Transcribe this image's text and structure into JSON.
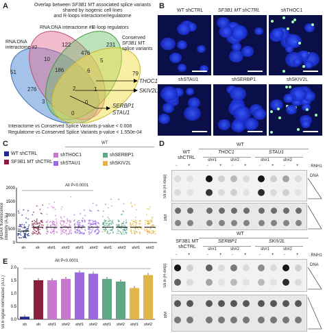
{
  "panels": {
    "A": "A",
    "B": "B",
    "C": "C",
    "D": "D",
    "E": "E"
  },
  "venn": {
    "title_parts": [
      "Overlap between ",
      "SF3B1",
      " MT associated splice variants"
    ],
    "title_line2": "shared by isogenic cell lines",
    "title_line3": "and R-loops interactome/regulatome",
    "sets": [
      "RNA:DNA interactome #1",
      "RNA:DNA interactome #2",
      "R-loop regulators",
      "Conserved",
      "SF3B1",
      "MT",
      "splice variants"
    ],
    "counts": [
      "122",
      "231",
      "10",
      "476",
      "51",
      "186",
      "6",
      "5",
      "79",
      "276",
      "2",
      "1",
      "3",
      "0",
      "0"
    ],
    "genes": [
      "THOC1",
      "SKIV2L",
      "SERBP1",
      "STAU1"
    ],
    "stat1": "Interactome vs Conserved Splice Variants p-value < 0.008",
    "stat2": "Regulatome vs Conserved Splice Variants p-value < 1.550e-04"
  },
  "micro": {
    "top": [
      "WT shCTRL",
      "SF3B1 MT shCTRL",
      "shTHOC1"
    ],
    "bottom": [
      "shSTAU1",
      "shSERBP1",
      "shSKIV2L"
    ]
  },
  "scatter": {
    "legend": [
      "WT shCTRL",
      "SF3B1 MT shCTRL",
      "shTHOC1",
      "shSTAU1",
      "shSERBP1",
      "shSKIV2L"
    ],
    "legend_colors": [
      "#1f2a8a",
      "#8b1e3f",
      "#c779d0",
      "#9c6ade",
      "#5fa885",
      "#e0b64a"
    ],
    "wt": "WT",
    "pvalue": "All P<0.0001",
    "ylabel": "γH2AX fluorescence intensity (A.U.)",
    "yticks": [
      "2000",
      "1500",
      "1000",
      "500",
      "0"
    ],
    "xticks": [
      "sh",
      "sh",
      "sh#1",
      "sh#2",
      "sh#1",
      "sh#2",
      "sh#1",
      "sh#2",
      "sh#1",
      "sh#2"
    ]
  },
  "bar": {
    "pvalue": "All P<0.0001",
    "ylabel": "S9.6 signal normalized (A.U.)",
    "yticks": [
      "2.0",
      "1.5",
      "1.0",
      "0.5",
      "0.0"
    ],
    "xticks": [
      "sh",
      "sh",
      "sh#1",
      "sh#2",
      "sh#1",
      "sh#2",
      "sh#1",
      "sh#2",
      "sh#1",
      "sh#2"
    ]
  },
  "chart_data": {
    "type": "bar",
    "categories": [
      "sh",
      "sh",
      "sh#1",
      "sh#2",
      "sh#1",
      "sh#2",
      "sh#1",
      "sh#2",
      "sh#1",
      "sh#2"
    ],
    "values": [
      0.1,
      1.5,
      1.5,
      1.55,
      1.8,
      1.75,
      1.55,
      1.45,
      1.2,
      1.7
    ],
    "colors": [
      "#1f2a8a",
      "#8b1e3f",
      "#c779d0",
      "#c779d0",
      "#9c6ade",
      "#9c6ade",
      "#5fa885",
      "#5fa885",
      "#e0b64a",
      "#e0b64a"
    ],
    "ylim": [
      0,
      2.0
    ],
    "ylabel": "S9.6 signal normalized (A.U.)"
  },
  "blot": {
    "top": {
      "wt": "WT",
      "group_left": "WT shCTRL",
      "group1": "THOC1",
      "group2": "STAU1",
      "sh1": "sh#1",
      "sh2": "sh#2",
      "minus": "-",
      "plus": "+",
      "rnh": ": RNH1",
      "dna": "DNA",
      "s96": "S9.6 (R-loop)",
      "bm": "BM"
    },
    "bottom": {
      "wt": "WT",
      "group_left": "SF3B1 MT shCTRL",
      "group1": "SERBP1",
      "group2": "SKIV2L",
      "sh1": "sh#1",
      "sh2": "sh#2",
      "minus": "-",
      "plus": "+",
      "rnh": ": RNH1",
      "dna": "DNA",
      "s96": "S9.6 (R-loop)",
      "bm": "BM"
    }
  }
}
